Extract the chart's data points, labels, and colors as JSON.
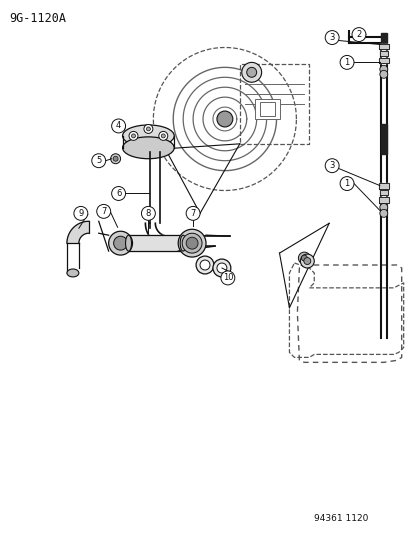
{
  "title": "9G-1120A",
  "subtitle": "94361 1120",
  "background_color": "#ffffff",
  "lc": "#111111",
  "dc": "#555555",
  "gc": "#aaaaaa",
  "figsize": [
    4.14,
    5.33
  ],
  "dpi": 100
}
